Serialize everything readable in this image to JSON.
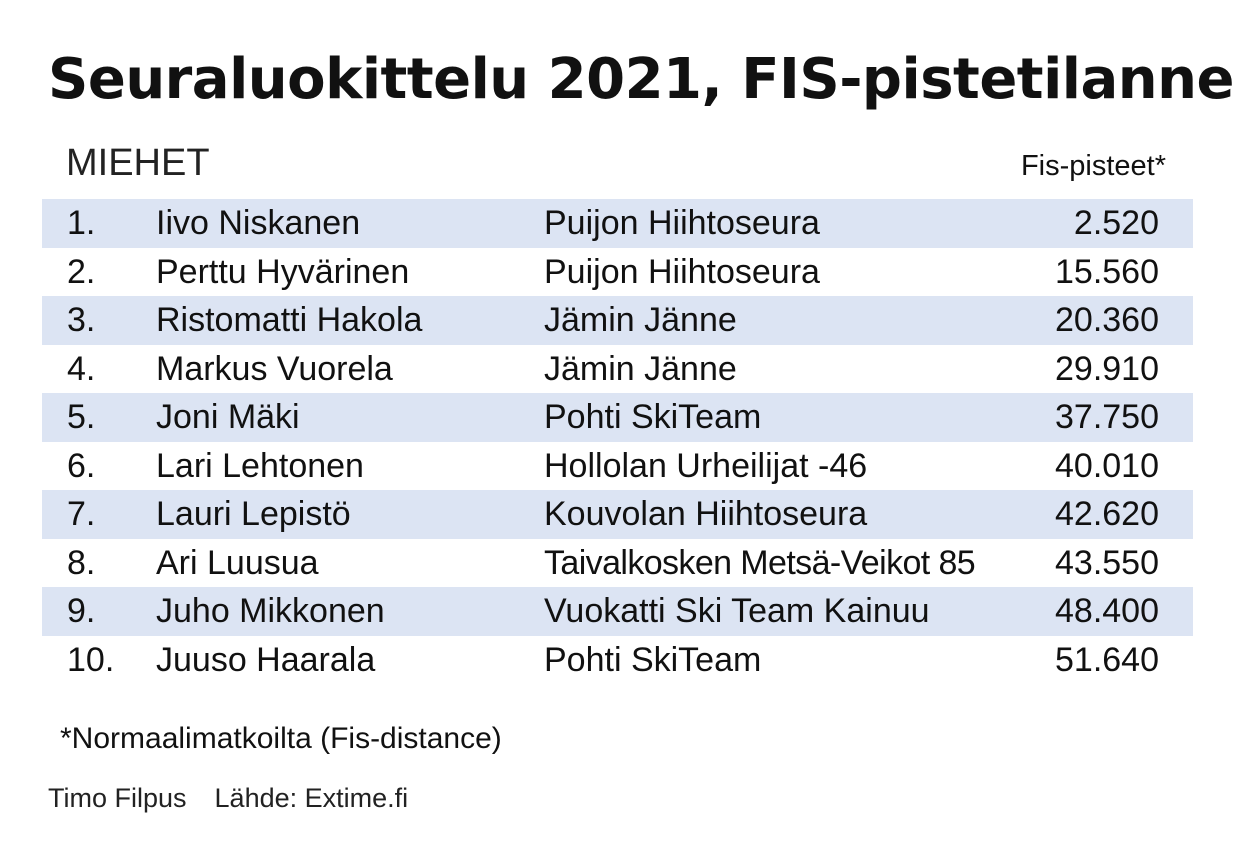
{
  "title": "Seuraluokittelu 2021, FIS-pistetilanne",
  "section_label": "MIEHET",
  "points_header": "Fis-pisteet*",
  "row_shade_color": "#dce4f3",
  "rows": [
    {
      "rank": "1.",
      "name": "Iivo Niskanen",
      "club": "Puijon Hiihtoseura",
      "points": "2.520"
    },
    {
      "rank": "2.",
      "name": "Perttu Hyvärinen",
      "club": "Puijon Hiihtoseura",
      "points": "15.560"
    },
    {
      "rank": "3.",
      "name": "Ristomatti Hakola",
      "club": "Jämin Jänne",
      "points": "20.360"
    },
    {
      "rank": "4.",
      "name": "Markus Vuorela",
      "club": "Jämin Jänne",
      "points": "29.910"
    },
    {
      "rank": "5.",
      "name": "Joni Mäki",
      "club": "Pohti SkiTeam",
      "points": "37.750"
    },
    {
      "rank": "6.",
      "name": "Lari Lehtonen",
      "club": "Hollolan Urheilijat -46",
      "points": "40.010"
    },
    {
      "rank": "7.",
      "name": "Lauri Lepistö",
      "club": "Kouvolan Hiihtoseura",
      "points": "42.620"
    },
    {
      "rank": "8.",
      "name": "Ari Luusua",
      "club": "Taivalkosken Metsä-Veikot 85",
      "points": "43.550"
    },
    {
      "rank": "9.",
      "name": "Juho Mikkonen",
      "club": "Vuokatti Ski Team Kainuu",
      "points": "48.400"
    },
    {
      "rank": "10.",
      "name": "Juuso Haarala",
      "club": "Pohti SkiTeam",
      "points": "51.640"
    }
  ],
  "footnote": "*Normaalimatkoilta (Fis-distance)",
  "author": "Timo Filpus",
  "source": "Lähde: Extime.fi"
}
